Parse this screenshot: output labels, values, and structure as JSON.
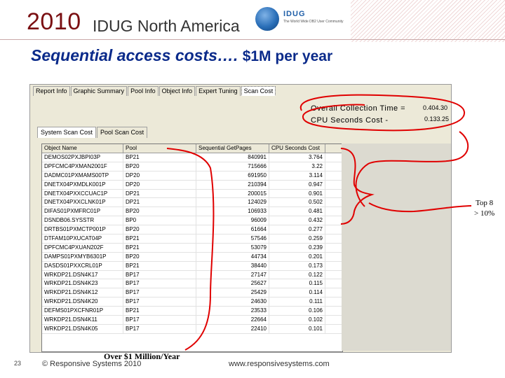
{
  "header": {
    "year": "2010",
    "conference": "IDUG North America",
    "logo_text": "IDUG",
    "logo_sub": "The World Wide DB2 User Community"
  },
  "slide": {
    "title": "Sequential access costs….",
    "title_cost": "$1M per year"
  },
  "app": {
    "tabs": [
      "Report Info",
      "Graphic Summary",
      "Pool Info",
      "Object Info",
      "Expert Tuning",
      "Scan Cost"
    ],
    "active_tab": "Scan Cost",
    "overall_label": "Overall Collection Time =",
    "overall_value": "0.404.30",
    "cpu_label": "CPU Seconds Cost -",
    "cpu_value": "0.133.25",
    "sub_tabs": [
      "System Scan Cost",
      "Pool Scan Cost"
    ],
    "active_sub_tab": "System Scan Cost",
    "table": {
      "headers": [
        "Object Name",
        "Pool",
        "Sequential GetPages",
        "CPU Seconds Cost"
      ],
      "rows": [
        [
          "DEMOS02PXJBPI03P",
          "BP21",
          "840991",
          "3.764"
        ],
        [
          "DPFCMC4PXMAN2001F",
          "BP20",
          "715666",
          "3.22"
        ],
        [
          "DADMC01PXMAMS00TP",
          "DP20",
          "691950",
          "3.114"
        ],
        [
          "DNETX04PXMDLK001P",
          "DP20",
          "210394",
          "0.947"
        ],
        [
          "DNETX04PXXCCUAC1P",
          "DP21",
          "200015",
          "0.901"
        ],
        [
          "DNETX04PXXCLNK01P",
          "DP21",
          "124029",
          "0.502"
        ],
        [
          "DIFAS01PXMFRC01P",
          "BP20",
          "106933",
          "0.481"
        ],
        [
          "DSNDB06.SYSSTR",
          "BP0",
          "96009",
          "0.432"
        ],
        [
          "DRTBS01PXMCTP001P",
          "BP20",
          "61664",
          "0.277"
        ],
        [
          "DTFAM10PXUCAT04P",
          "BP21",
          "57546",
          "0.259"
        ],
        [
          "DPFCMC4PXUAN202F",
          "BP21",
          "53079",
          "0.239"
        ],
        [
          "DAMPS01PXMYB6301P",
          "BP20",
          "44734",
          "0.201"
        ],
        [
          "DASDS01PXXCRL01P",
          "BP21",
          "38440",
          "0.173"
        ],
        [
          "WRKDP21.DSN4K17",
          "BP17",
          "27147",
          "0.122"
        ],
        [
          "WRKDP21.DSN4K23",
          "BP17",
          "25627",
          "0.115"
        ],
        [
          "WRKDP21.DSN4K12",
          "BP17",
          "25429",
          "0.114"
        ],
        [
          "WRKDP21.DSN4K20",
          "BP17",
          "24630",
          "0.111"
        ],
        [
          "DEFMS01PXCFNR01P",
          "BP21",
          "23533",
          "0.106"
        ],
        [
          "WRKDP21.DSN4K11",
          "BP17",
          "22664",
          "0.102"
        ],
        [
          "WRKDP21.DSN4K05",
          "BP17",
          "22410",
          "0.101"
        ]
      ]
    }
  },
  "annotations": {
    "top8_line1": "Top 8",
    "top8_line2": "> 10%",
    "over_million": "Over $1 Million/Year",
    "annotation_color": "#e00000"
  },
  "footer": {
    "slide_number": "23",
    "copyright": "© Responsive Systems 2010",
    "url": "www.responsivesystems.com"
  }
}
